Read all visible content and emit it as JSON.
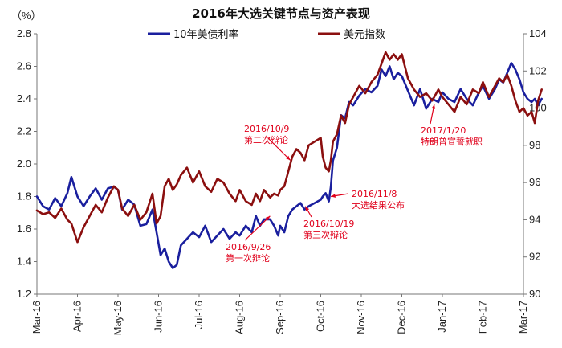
{
  "chart_data": {
    "type": "line",
    "title": "2016年大选关键节点与资产表现",
    "unit_left": "（%）",
    "x_labels": [
      "Mar-16",
      "Apr-16",
      "May-16",
      "Jun-16",
      "Jul-16",
      "Aug-16",
      "Sep-16",
      "Oct-16",
      "Nov-16",
      "Dec-16",
      "Jan-17",
      "Feb-17",
      "Mar-17"
    ],
    "left_axis": {
      "min": 1.2,
      "max": 2.8,
      "ticks": [
        "1.2",
        "1.4",
        "1.6",
        "1.8",
        "2.0",
        "2.2",
        "2.4",
        "2.6",
        "2.8"
      ]
    },
    "right_axis": {
      "min": 90,
      "max": 104,
      "ticks": [
        "90",
        "92",
        "94",
        "96",
        "98",
        "100",
        "102",
        "104"
      ]
    },
    "series": [
      {
        "name": "10年美债利率",
        "axis": "left",
        "color": "#1a1f9e",
        "points": [
          [
            0.0,
            1.8
          ],
          [
            0.15,
            1.74
          ],
          [
            0.3,
            1.72
          ],
          [
            0.45,
            1.79
          ],
          [
            0.6,
            1.74
          ],
          [
            0.75,
            1.82
          ],
          [
            0.85,
            1.92
          ],
          [
            1.0,
            1.8
          ],
          [
            1.15,
            1.74
          ],
          [
            1.3,
            1.8
          ],
          [
            1.45,
            1.85
          ],
          [
            1.6,
            1.78
          ],
          [
            1.75,
            1.85
          ],
          [
            1.9,
            1.86
          ],
          [
            2.0,
            1.84
          ],
          [
            2.1,
            1.72
          ],
          [
            2.25,
            1.78
          ],
          [
            2.4,
            1.75
          ],
          [
            2.55,
            1.62
          ],
          [
            2.7,
            1.63
          ],
          [
            2.85,
            1.72
          ],
          [
            2.95,
            1.58
          ],
          [
            3.05,
            1.44
          ],
          [
            3.15,
            1.48
          ],
          [
            3.25,
            1.4
          ],
          [
            3.35,
            1.36
          ],
          [
            3.45,
            1.38
          ],
          [
            3.55,
            1.5
          ],
          [
            3.7,
            1.54
          ],
          [
            3.85,
            1.58
          ],
          [
            4.0,
            1.55
          ],
          [
            4.15,
            1.62
          ],
          [
            4.3,
            1.52
          ],
          [
            4.45,
            1.56
          ],
          [
            4.6,
            1.6
          ],
          [
            4.75,
            1.54
          ],
          [
            4.9,
            1.58
          ],
          [
            5.0,
            1.56
          ],
          [
            5.15,
            1.62
          ],
          [
            5.3,
            1.58
          ],
          [
            5.4,
            1.68
          ],
          [
            5.5,
            1.62
          ],
          [
            5.6,
            1.66
          ],
          [
            5.75,
            1.66
          ],
          [
            5.85,
            1.62
          ],
          [
            5.95,
            1.56
          ],
          [
            6.0,
            1.62
          ],
          [
            6.1,
            1.58
          ],
          [
            6.2,
            1.68
          ],
          [
            6.3,
            1.72
          ],
          [
            6.4,
            1.74
          ],
          [
            6.5,
            1.76
          ],
          [
            6.6,
            1.72
          ],
          [
            6.7,
            1.74
          ],
          [
            6.85,
            1.76
          ],
          [
            7.0,
            1.78
          ],
          [
            7.05,
            1.8
          ],
          [
            7.12,
            1.82
          ],
          [
            7.2,
            1.77
          ],
          [
            7.25,
            1.86
          ],
          [
            7.3,
            2.02
          ],
          [
            7.4,
            2.1
          ],
          [
            7.5,
            2.3
          ],
          [
            7.6,
            2.28
          ],
          [
            7.7,
            2.38
          ],
          [
            7.8,
            2.36
          ],
          [
            7.95,
            2.42
          ],
          [
            8.1,
            2.46
          ],
          [
            8.25,
            2.44
          ],
          [
            8.4,
            2.48
          ],
          [
            8.5,
            2.58
          ],
          [
            8.6,
            2.54
          ],
          [
            8.7,
            2.6
          ],
          [
            8.8,
            2.52
          ],
          [
            8.9,
            2.56
          ],
          [
            9.0,
            2.54
          ],
          [
            9.15,
            2.45
          ],
          [
            9.3,
            2.36
          ],
          [
            9.45,
            2.46
          ],
          [
            9.6,
            2.34
          ],
          [
            9.75,
            2.4
          ],
          [
            9.9,
            2.38
          ],
          [
            10.0,
            2.44
          ],
          [
            10.15,
            2.4
          ],
          [
            10.3,
            2.38
          ],
          [
            10.45,
            2.46
          ],
          [
            10.6,
            2.4
          ],
          [
            10.75,
            2.36
          ],
          [
            10.9,
            2.44
          ],
          [
            11.0,
            2.48
          ],
          [
            11.15,
            2.4
          ],
          [
            11.3,
            2.46
          ],
          [
            11.4,
            2.52
          ],
          [
            11.5,
            2.5
          ],
          [
            11.6,
            2.56
          ],
          [
            11.7,
            2.62
          ],
          [
            11.8,
            2.58
          ],
          [
            11.9,
            2.52
          ],
          [
            12.0,
            2.44
          ],
          [
            12.1,
            2.4
          ],
          [
            12.2,
            2.38
          ],
          [
            12.28,
            2.4
          ],
          [
            12.36,
            2.36
          ],
          [
            12.45,
            2.4
          ]
        ]
      },
      {
        "name": "美元指数",
        "axis": "right",
        "color": "#8b0f0f",
        "points": [
          [
            0.0,
            94.5
          ],
          [
            0.15,
            94.3
          ],
          [
            0.3,
            94.4
          ],
          [
            0.45,
            94.1
          ],
          [
            0.6,
            94.6
          ],
          [
            0.75,
            94.0
          ],
          [
            0.85,
            93.8
          ],
          [
            1.0,
            92.8
          ],
          [
            1.15,
            93.6
          ],
          [
            1.3,
            94.2
          ],
          [
            1.45,
            94.8
          ],
          [
            1.6,
            94.4
          ],
          [
            1.75,
            95.2
          ],
          [
            1.9,
            95.8
          ],
          [
            2.0,
            95.6
          ],
          [
            2.1,
            94.6
          ],
          [
            2.25,
            94.2
          ],
          [
            2.4,
            94.8
          ],
          [
            2.55,
            94.0
          ],
          [
            2.7,
            94.4
          ],
          [
            2.85,
            95.4
          ],
          [
            2.95,
            93.8
          ],
          [
            3.05,
            94.2
          ],
          [
            3.15,
            95.8
          ],
          [
            3.25,
            96.2
          ],
          [
            3.35,
            95.6
          ],
          [
            3.45,
            95.9
          ],
          [
            3.55,
            96.4
          ],
          [
            3.7,
            96.8
          ],
          [
            3.85,
            96.0
          ],
          [
            4.0,
            96.6
          ],
          [
            4.15,
            95.8
          ],
          [
            4.3,
            95.5
          ],
          [
            4.45,
            96.2
          ],
          [
            4.6,
            96.0
          ],
          [
            4.75,
            95.4
          ],
          [
            4.9,
            95.0
          ],
          [
            5.0,
            95.6
          ],
          [
            5.15,
            95.0
          ],
          [
            5.3,
            94.8
          ],
          [
            5.4,
            95.4
          ],
          [
            5.5,
            95.0
          ],
          [
            5.6,
            95.6
          ],
          [
            5.75,
            95.2
          ],
          [
            5.85,
            95.4
          ],
          [
            5.95,
            95.3
          ],
          [
            6.0,
            95.6
          ],
          [
            6.1,
            95.8
          ],
          [
            6.2,
            96.6
          ],
          [
            6.3,
            97.4
          ],
          [
            6.4,
            97.8
          ],
          [
            6.5,
            97.6
          ],
          [
            6.6,
            97.2
          ],
          [
            6.7,
            98.0
          ],
          [
            6.85,
            98.2
          ],
          [
            7.0,
            98.4
          ],
          [
            7.05,
            97.4
          ],
          [
            7.12,
            96.8
          ],
          [
            7.2,
            96.6
          ],
          [
            7.25,
            97.2
          ],
          [
            7.3,
            98.2
          ],
          [
            7.4,
            98.6
          ],
          [
            7.5,
            99.6
          ],
          [
            7.6,
            99.2
          ],
          [
            7.7,
            100.2
          ],
          [
            7.8,
            100.6
          ],
          [
            7.95,
            101.2
          ],
          [
            8.1,
            100.8
          ],
          [
            8.25,
            101.4
          ],
          [
            8.4,
            101.8
          ],
          [
            8.5,
            102.4
          ],
          [
            8.6,
            103.0
          ],
          [
            8.7,
            102.6
          ],
          [
            8.8,
            102.9
          ],
          [
            8.9,
            102.6
          ],
          [
            9.0,
            102.9
          ],
          [
            9.15,
            101.6
          ],
          [
            9.3,
            101.0
          ],
          [
            9.45,
            100.6
          ],
          [
            9.6,
            100.8
          ],
          [
            9.75,
            100.4
          ],
          [
            9.9,
            101.0
          ],
          [
            10.0,
            100.6
          ],
          [
            10.15,
            100.2
          ],
          [
            10.3,
            99.8
          ],
          [
            10.45,
            100.6
          ],
          [
            10.6,
            100.2
          ],
          [
            10.75,
            101.0
          ],
          [
            10.9,
            100.8
          ],
          [
            11.0,
            101.4
          ],
          [
            11.15,
            100.6
          ],
          [
            11.3,
            101.2
          ],
          [
            11.4,
            101.6
          ],
          [
            11.5,
            101.4
          ],
          [
            11.6,
            101.8
          ],
          [
            11.7,
            101.2
          ],
          [
            11.8,
            100.4
          ],
          [
            11.9,
            99.8
          ],
          [
            12.0,
            100.0
          ],
          [
            12.1,
            99.6
          ],
          [
            12.2,
            99.8
          ],
          [
            12.28,
            99.2
          ],
          [
            12.36,
            100.4
          ],
          [
            12.45,
            101.0
          ]
        ]
      }
    ],
    "annotations": [
      {
        "lines": [
          "2016/10/9",
          "第二次辩论"
        ],
        "target": [
          6.25,
          "right",
          97.2
        ]
      },
      {
        "lines": [
          "2016/11/8",
          "大选结果公布"
        ],
        "target": [
          7.25,
          "left",
          1.8
        ]
      },
      {
        "lines": [
          "2016/10/19",
          "第三次辩论"
        ],
        "target": [
          6.62,
          "left",
          1.74
        ]
      },
      {
        "lines": [
          "2016/9/26",
          "第一次辩论"
        ],
        "target": [
          5.75,
          "left",
          1.68
        ]
      },
      {
        "lines": [
          "2017/1/20",
          "特朗普宣誓就职"
        ],
        "target": [
          9.8,
          "right",
          100.2
        ]
      }
    ]
  }
}
